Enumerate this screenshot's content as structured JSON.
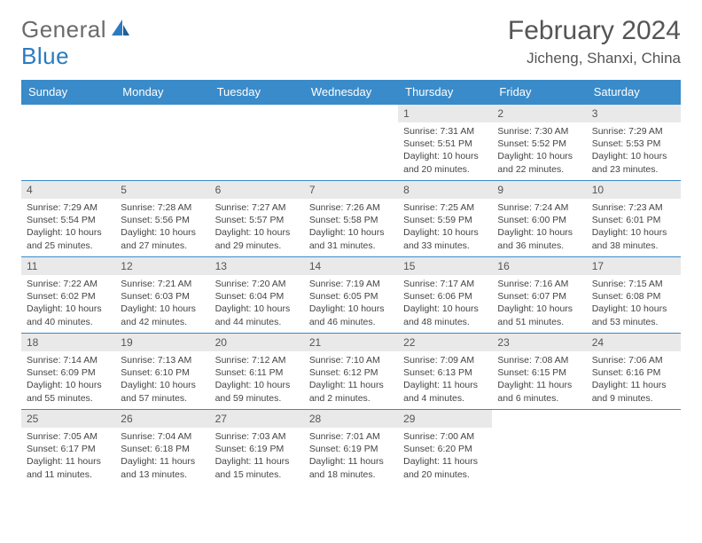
{
  "logo": {
    "word1": "General",
    "word2": "Blue"
  },
  "title": "February 2024",
  "location": "Jicheng, Shanxi, China",
  "columns": [
    "Sunday",
    "Monday",
    "Tuesday",
    "Wednesday",
    "Thursday",
    "Friday",
    "Saturday"
  ],
  "colors": {
    "header_bg": "#3a8bc9",
    "header_text": "#ffffff",
    "daynum_bg": "#e9e9e9",
    "row_border": "#3a8bc9",
    "logo_gray": "#6b6b6b",
    "logo_blue": "#2a7bbf",
    "body_text": "#444444"
  },
  "first_weekday": 4,
  "days": [
    {
      "n": 1,
      "sunrise": "7:31 AM",
      "sunset": "5:51 PM",
      "dl": "10 hours and 20 minutes."
    },
    {
      "n": 2,
      "sunrise": "7:30 AM",
      "sunset": "5:52 PM",
      "dl": "10 hours and 22 minutes."
    },
    {
      "n": 3,
      "sunrise": "7:29 AM",
      "sunset": "5:53 PM",
      "dl": "10 hours and 23 minutes."
    },
    {
      "n": 4,
      "sunrise": "7:29 AM",
      "sunset": "5:54 PM",
      "dl": "10 hours and 25 minutes."
    },
    {
      "n": 5,
      "sunrise": "7:28 AM",
      "sunset": "5:56 PM",
      "dl": "10 hours and 27 minutes."
    },
    {
      "n": 6,
      "sunrise": "7:27 AM",
      "sunset": "5:57 PM",
      "dl": "10 hours and 29 minutes."
    },
    {
      "n": 7,
      "sunrise": "7:26 AM",
      "sunset": "5:58 PM",
      "dl": "10 hours and 31 minutes."
    },
    {
      "n": 8,
      "sunrise": "7:25 AM",
      "sunset": "5:59 PM",
      "dl": "10 hours and 33 minutes."
    },
    {
      "n": 9,
      "sunrise": "7:24 AM",
      "sunset": "6:00 PM",
      "dl": "10 hours and 36 minutes."
    },
    {
      "n": 10,
      "sunrise": "7:23 AM",
      "sunset": "6:01 PM",
      "dl": "10 hours and 38 minutes."
    },
    {
      "n": 11,
      "sunrise": "7:22 AM",
      "sunset": "6:02 PM",
      "dl": "10 hours and 40 minutes."
    },
    {
      "n": 12,
      "sunrise": "7:21 AM",
      "sunset": "6:03 PM",
      "dl": "10 hours and 42 minutes."
    },
    {
      "n": 13,
      "sunrise": "7:20 AM",
      "sunset": "6:04 PM",
      "dl": "10 hours and 44 minutes."
    },
    {
      "n": 14,
      "sunrise": "7:19 AM",
      "sunset": "6:05 PM",
      "dl": "10 hours and 46 minutes."
    },
    {
      "n": 15,
      "sunrise": "7:17 AM",
      "sunset": "6:06 PM",
      "dl": "10 hours and 48 minutes."
    },
    {
      "n": 16,
      "sunrise": "7:16 AM",
      "sunset": "6:07 PM",
      "dl": "10 hours and 51 minutes."
    },
    {
      "n": 17,
      "sunrise": "7:15 AM",
      "sunset": "6:08 PM",
      "dl": "10 hours and 53 minutes."
    },
    {
      "n": 18,
      "sunrise": "7:14 AM",
      "sunset": "6:09 PM",
      "dl": "10 hours and 55 minutes."
    },
    {
      "n": 19,
      "sunrise": "7:13 AM",
      "sunset": "6:10 PM",
      "dl": "10 hours and 57 minutes."
    },
    {
      "n": 20,
      "sunrise": "7:12 AM",
      "sunset": "6:11 PM",
      "dl": "10 hours and 59 minutes."
    },
    {
      "n": 21,
      "sunrise": "7:10 AM",
      "sunset": "6:12 PM",
      "dl": "11 hours and 2 minutes."
    },
    {
      "n": 22,
      "sunrise": "7:09 AM",
      "sunset": "6:13 PM",
      "dl": "11 hours and 4 minutes."
    },
    {
      "n": 23,
      "sunrise": "7:08 AM",
      "sunset": "6:15 PM",
      "dl": "11 hours and 6 minutes."
    },
    {
      "n": 24,
      "sunrise": "7:06 AM",
      "sunset": "6:16 PM",
      "dl": "11 hours and 9 minutes."
    },
    {
      "n": 25,
      "sunrise": "7:05 AM",
      "sunset": "6:17 PM",
      "dl": "11 hours and 11 minutes."
    },
    {
      "n": 26,
      "sunrise": "7:04 AM",
      "sunset": "6:18 PM",
      "dl": "11 hours and 13 minutes."
    },
    {
      "n": 27,
      "sunrise": "7:03 AM",
      "sunset": "6:19 PM",
      "dl": "11 hours and 15 minutes."
    },
    {
      "n": 28,
      "sunrise": "7:01 AM",
      "sunset": "6:19 PM",
      "dl": "11 hours and 18 minutes."
    },
    {
      "n": 29,
      "sunrise": "7:00 AM",
      "sunset": "6:20 PM",
      "dl": "11 hours and 20 minutes."
    }
  ],
  "labels": {
    "sunrise": "Sunrise:",
    "sunset": "Sunset:",
    "daylight": "Daylight:"
  }
}
